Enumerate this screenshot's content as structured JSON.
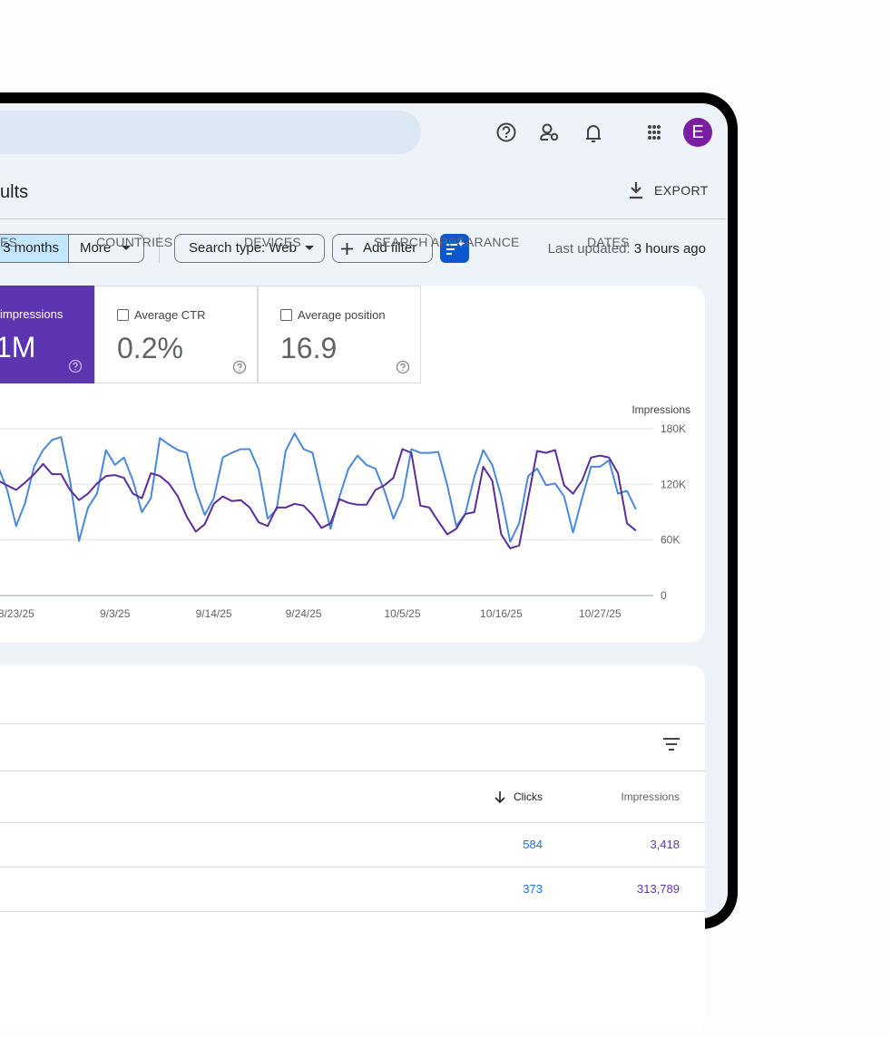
{
  "header": {
    "title": "ults",
    "export": "EXPORT",
    "avatar": "E"
  },
  "filters": {
    "date": "3 months",
    "more": "More",
    "search_type": "Search type: Web",
    "add_filter": "Add filter",
    "last_updated_label": "Last updated:",
    "last_updated_value": "3 hours ago"
  },
  "metrics": [
    {
      "label": "impressions",
      "value": "1M"
    },
    {
      "label": "Average CTR",
      "value": "0.2%"
    },
    {
      "label": "Average position",
      "value": "16.9"
    }
  ],
  "chart_data": {
    "type": "line",
    "ylabel": "Impressions",
    "yaxis_position": "right",
    "grid": true,
    "ylim": [
      0,
      180000
    ],
    "yticks": [
      0,
      {
        "value": 60000,
        "label": "60K"
      },
      {
        "value": 120000,
        "label": "120K"
      },
      {
        "value": 180000,
        "label": "180K"
      }
    ],
    "categories": [
      null,
      null,
      "8/23/25",
      null,
      null,
      null,
      null,
      null,
      null,
      null,
      null,
      null,
      null,
      "9/3/25",
      null,
      null,
      null,
      null,
      null,
      null,
      null,
      null,
      null,
      null,
      "9/14/25",
      null,
      null,
      null,
      null,
      null,
      null,
      null,
      null,
      null,
      "9/24/25",
      null,
      null,
      null,
      null,
      null,
      null,
      null,
      null,
      null,
      null,
      "10/5/25",
      null,
      null,
      null,
      null,
      null,
      null,
      null,
      null,
      null,
      null,
      "10/16/25",
      null,
      null,
      null,
      null,
      null,
      null,
      null,
      null,
      null,
      null,
      "10/27/25",
      null,
      null,
      null,
      null
    ],
    "series": [
      {
        "color": "#4a88dc",
        "values": [
          139000,
          114000,
          75000,
          100000,
          139000,
          157000,
          168000,
          171000,
          124000,
          59000,
          95000,
          110000,
          157000,
          141000,
          149000,
          124000,
          90000,
          105000,
          170000,
          163000,
          157000,
          154000,
          114000,
          87000,
          105000,
          149000,
          154000,
          158000,
          158000,
          136000,
          83000,
          93000,
          156000,
          175000,
          158000,
          154000,
          112000,
          72000,
          107000,
          137000,
          151000,
          141000,
          137000,
          113000,
          83000,
          105000,
          158000,
          154000,
          154000,
          155000,
          119000,
          75000,
          88000,
          128000,
          157000,
          141000,
          107000,
          58000,
          78000,
          129000,
          137000,
          119000,
          121000,
          107000,
          68000,
          105000,
          139000,
          139000,
          146000,
          110000,
          113000,
          93000
        ]
      },
      {
        "color": "#5a2d9c",
        "values": [
          124000,
          119000,
          114000,
          122000,
          131000,
          142000,
          131000,
          131000,
          114000,
          103000,
          110000,
          121000,
          129000,
          130000,
          127000,
          110000,
          105000,
          132000,
          129000,
          121000,
          107000,
          85000,
          69000,
          77000,
          99000,
          107000,
          102000,
          103000,
          95000,
          79000,
          75000,
          95000,
          95000,
          99000,
          97000,
          87000,
          73000,
          78000,
          104000,
          100000,
          98000,
          98000,
          114000,
          119000,
          127000,
          158000,
          154000,
          97000,
          95000,
          80000,
          66000,
          72000,
          88000,
          90000,
          139000,
          124000,
          66000,
          51000,
          54000,
          105000,
          156000,
          154000,
          157000,
          119000,
          110000,
          124000,
          149000,
          151000,
          149000,
          132000,
          78000,
          70000
        ]
      }
    ]
  },
  "tabs": [
    "ES",
    "COUNTRIES",
    "DEVICES",
    "SEARCH APPEARANCE",
    "DATES"
  ],
  "table": {
    "columns": [
      "Clicks",
      "Impressions"
    ],
    "rows": [
      [
        "584",
        "3,418"
      ],
      [
        "373",
        "313,789"
      ]
    ]
  }
}
